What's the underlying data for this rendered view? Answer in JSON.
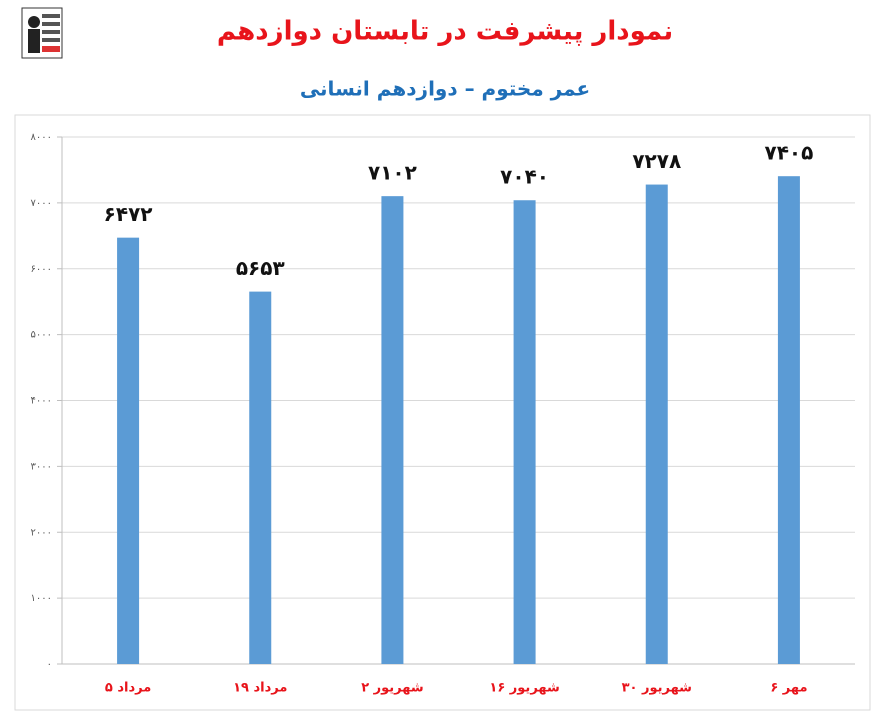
{
  "chart_data": {
    "type": "bar",
    "title": "نمودار پیشرفت در تابستان دوازدهم",
    "subtitle": "عمر مختوم – دوازدهم انسانی",
    "categories": [
      "۵ مرداد",
      "۱۹ مرداد",
      "۲ شهریور",
      "۱۶ شهریور",
      "۳۰ شهریور",
      "۶ مهر"
    ],
    "values": [
      6472,
      5653,
      7102,
      7040,
      7278,
      7405
    ],
    "value_labels": [
      "۶۴۷۲",
      "۵۶۵۳",
      "۷۱۰۲",
      "۷۰۴۰",
      "۷۲۷۸",
      "۷۴۰۵"
    ],
    "color": "#5b9bd5",
    "ylim": [
      0,
      8000
    ],
    "yticks": [
      {
        "value": 0,
        "label": "۰"
      },
      {
        "value": 1000,
        "label": "۱۰۰۰"
      },
      {
        "value": 2000,
        "label": "۲۰۰۰"
      },
      {
        "value": 3000,
        "label": "۳۰۰۰"
      },
      {
        "value": 4000,
        "label": "۴۰۰۰"
      },
      {
        "value": 5000,
        "label": "۵۰۰۰"
      },
      {
        "value": 6000,
        "label": "۶۰۰۰"
      },
      {
        "value": 7000,
        "label": "۷۰۰۰"
      },
      {
        "value": 8000,
        "label": "۸۰۰۰"
      }
    ],
    "grid": true
  }
}
